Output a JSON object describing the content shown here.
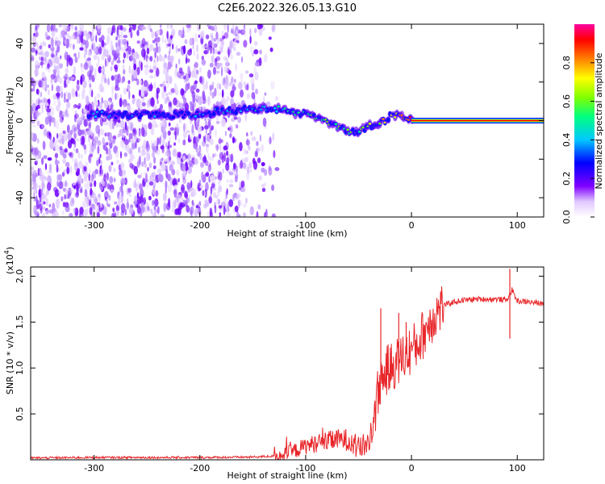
{
  "figure": {
    "title": "C2E6.2022.326.05.13.G10"
  },
  "chart_data": [
    {
      "type": "heatmap",
      "title": "C2E6.2022.326.05.13.G10",
      "xlabel": "Height of straight line (km)",
      "ylabel": "Frequency (Hz)",
      "xlim": [
        -360,
        125
      ],
      "ylim": [
        -50,
        50
      ],
      "x_ticks": [
        -300,
        -200,
        -100,
        0,
        100
      ],
      "y_ticks": [
        -40,
        -20,
        0,
        20,
        40
      ],
      "grid": false,
      "colorbar": {
        "label": "Normalized spectral amplitude",
        "range": [
          0.0,
          1.0
        ],
        "ticks": [
          0.0,
          0.2,
          0.4,
          0.6,
          0.8
        ],
        "colormap": [
          "#ffffff",
          "#d9b3ff",
          "#8000ff",
          "#0000ff",
          "#00c8ff",
          "#00ff80",
          "#80ff00",
          "#ffff00",
          "#ff8000",
          "#ff0000",
          "#ff00a0"
        ]
      },
      "features": {
        "noise_region_x": [
          -360,
          -150
        ],
        "signal_track": {
          "x": [
            -300,
            -250,
            -200,
            -180,
            -150,
            -120,
            -100,
            -80,
            -60,
            -50,
            -40,
            -30,
            -20,
            -10,
            0,
            50,
            125
          ],
          "freq": [
            3,
            3,
            3,
            5,
            6,
            6,
            3,
            0,
            -6,
            -5,
            -3,
            -1,
            2,
            3,
            1,
            0,
            0
          ],
          "amplitude": [
            0.3,
            0.3,
            0.3,
            0.35,
            0.35,
            0.4,
            0.45,
            0.5,
            0.45,
            0.45,
            0.55,
            0.6,
            0.65,
            0.7,
            0.8,
            0.95,
            1.0
          ]
        }
      }
    },
    {
      "type": "line",
      "xlabel": "Height of straight line (km)",
      "ylabel": "SNR (10 * v/v)",
      "y_scale_label": "(x10",
      "y_scale_exp": "4",
      "xlim": [
        -360,
        125
      ],
      "ylim": [
        0,
        2.1
      ],
      "x_ticks": [
        -300,
        -200,
        -100,
        0,
        100
      ],
      "y_ticks": [
        0.5,
        1.0,
        1.5,
        2.0
      ],
      "y_tick_labels": [
        "0.5",
        "1.0",
        "1.5",
        "2.0"
      ],
      "grid": false,
      "series": [
        {
          "color": "#e8262a",
          "x": [
            -360,
            -300,
            -250,
            -200,
            -150,
            -130,
            -120,
            -110,
            -100,
            -90,
            -80,
            -70,
            -60,
            -50,
            -45,
            -40,
            -35,
            -30,
            -25,
            -20,
            -15,
            -10,
            -5,
            0,
            5,
            10,
            15,
            20,
            25,
            30,
            40,
            50,
            60,
            70,
            80,
            90,
            95,
            100,
            110,
            125
          ],
          "values": [
            0.02,
            0.025,
            0.025,
            0.025,
            0.03,
            0.04,
            0.06,
            0.1,
            0.15,
            0.18,
            0.2,
            0.22,
            0.22,
            0.12,
            0.15,
            0.2,
            0.5,
            0.85,
            0.95,
            1.0,
            1.05,
            1.1,
            1.15,
            1.2,
            1.25,
            1.35,
            1.45,
            1.55,
            1.62,
            1.68,
            1.72,
            1.74,
            1.75,
            1.75,
            1.75,
            1.74,
            1.85,
            1.73,
            1.72,
            1.7
          ]
        }
      ],
      "spikes": [
        {
          "x": -29,
          "value": 1.65
        },
        {
          "x": -12,
          "value": 1.6
        },
        {
          "x": -5,
          "value": 1.5
        },
        {
          "x": 93,
          "value": 2.08
        },
        {
          "x": 93,
          "value": 1.32
        }
      ]
    }
  ]
}
